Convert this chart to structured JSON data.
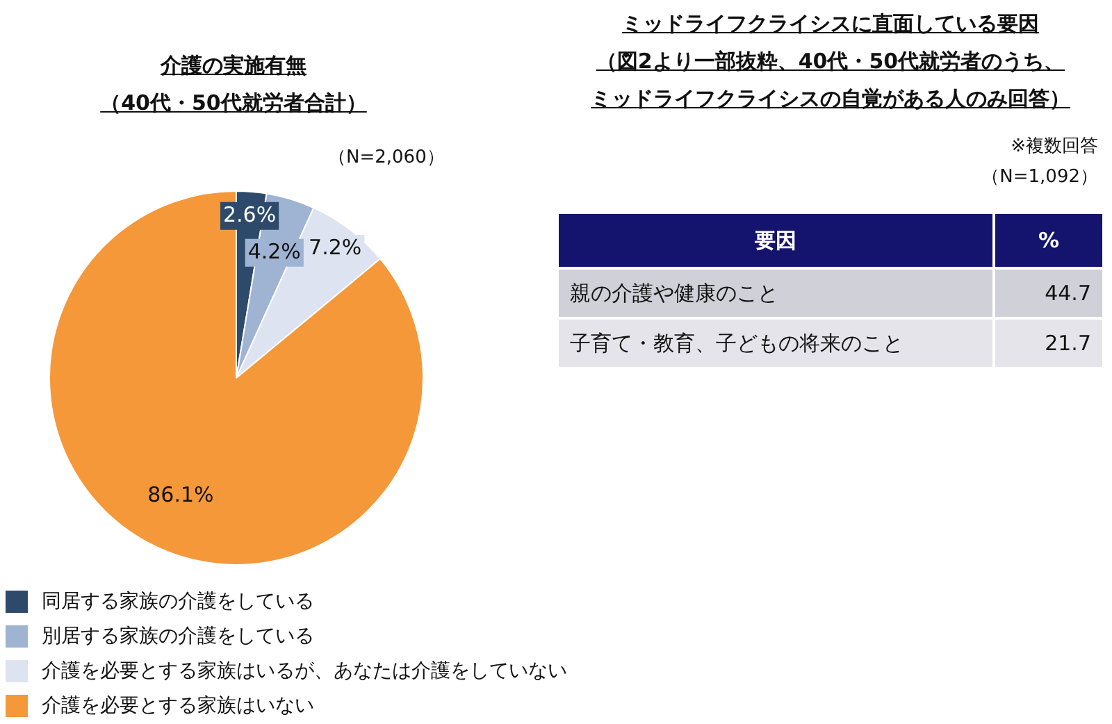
{
  "chart_data": [
    {
      "type": "pie",
      "title": "介護の実施有無",
      "subtitle": "（40代・50代就労者合計）",
      "annotations": [
        "（N=2,060）"
      ],
      "categories": [
        "同居する家族の介護をしている",
        "別居する家族の介護をしている",
        "介護を必要とする家族はいるが、あなたは介護をしていない",
        "介護を必要とする家族はいない"
      ],
      "values": [
        2.6,
        4.2,
        7.2,
        86.1
      ],
      "colors": [
        "#2e4a6b",
        "#9fb3d3",
        "#dde3f0",
        "#f4983a"
      ],
      "value_labels": [
        "2.6%",
        "4.2%",
        "7.2%",
        "86.1%"
      ],
      "legend": "bottom"
    },
    {
      "type": "other",
      "title": "ミッドライフクライシスに直面している要因",
      "subtitle": "（図2より一部抜粋、40代・50代就労者のうち、ミッドライフクライシスの自覚がある人のみ回答）",
      "data_labels": true,
      "annotations": [
        "※複数回答",
        "（N=1,092）"
      ],
      "xlabel": "要因",
      "ylabel": "%",
      "categories": [
        "親の介護や健康のこと",
        "子育て・教育、子どもの将来のこと"
      ],
      "values": [
        44.7,
        21.7
      ]
    }
  ]
}
